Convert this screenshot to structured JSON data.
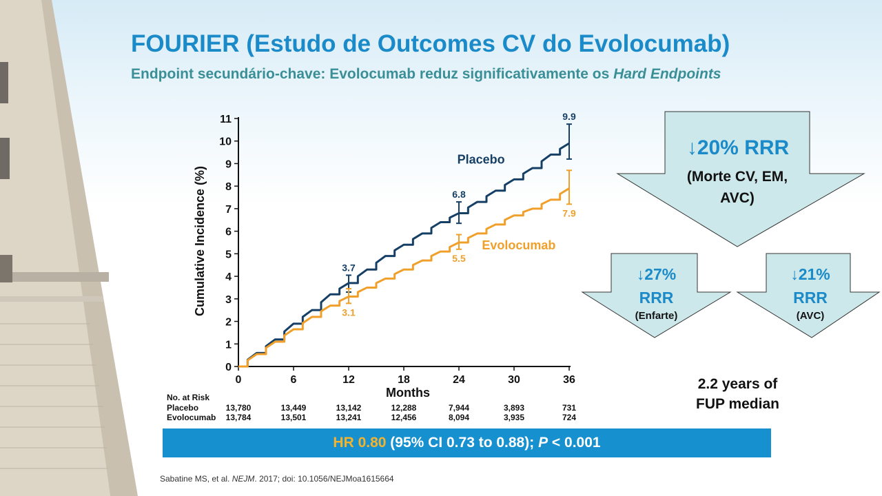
{
  "title": "FOURIER (Estudo de Outcomes CV do Evolocumab)",
  "subtitle": {
    "main": "Endpoint secundário-chave: Evolocumab reduz significativamente os ",
    "emph": "Hard Endpoints"
  },
  "chart_data": {
    "type": "line",
    "xlabel": "Months",
    "ylabel": "Cumulative Incidence (%)",
    "xlim": [
      0,
      36
    ],
    "ylim": [
      0,
      11
    ],
    "x_ticks": [
      0,
      6,
      12,
      18,
      24,
      30,
      36
    ],
    "y_ticks": [
      0,
      1,
      2,
      3,
      4,
      5,
      6,
      7,
      8,
      9,
      10,
      11
    ],
    "grid": false,
    "series": [
      {
        "name": "Placebo",
        "color": "#163f66",
        "x": [
          0,
          2,
          4,
          6,
          8,
          10,
          12,
          14,
          16,
          18,
          20,
          22,
          24,
          26,
          28,
          30,
          32,
          34,
          36
        ],
        "y": [
          0,
          0.6,
          1.2,
          1.9,
          2.5,
          3.2,
          3.7,
          4.3,
          4.9,
          5.4,
          5.9,
          6.4,
          6.8,
          7.3,
          7.8,
          8.3,
          8.8,
          9.4,
          9.9
        ],
        "labels": [
          {
            "x": 12,
            "y": 3.7,
            "text": "3.7",
            "err": [
              3.3,
              4.05
            ]
          },
          {
            "x": 24,
            "y": 6.8,
            "text": "6.8",
            "err": [
              6.35,
              7.3
            ]
          },
          {
            "x": 36,
            "y": 9.9,
            "text": "9.9",
            "err": [
              9.2,
              10.75
            ]
          }
        ]
      },
      {
        "name": "Evolocumab",
        "color": "#f0a02a",
        "x": [
          0,
          2,
          4,
          6,
          8,
          10,
          12,
          14,
          16,
          18,
          20,
          22,
          24,
          26,
          28,
          30,
          32,
          34,
          36
        ],
        "y": [
          0,
          0.55,
          1.1,
          1.65,
          2.2,
          2.7,
          3.1,
          3.5,
          3.9,
          4.3,
          4.7,
          5.1,
          5.5,
          5.9,
          6.3,
          6.7,
          7.0,
          7.4,
          7.9
        ],
        "labels": [
          {
            "x": 12,
            "y": 3.1,
            "text": "3.1",
            "err": [
              2.8,
              3.45
            ]
          },
          {
            "x": 24,
            "y": 5.5,
            "text": "5.5",
            "err": [
              5.2,
              5.85
            ]
          },
          {
            "x": 36,
            "y": 7.9,
            "text": "7.9",
            "err": [
              7.2,
              8.7
            ]
          }
        ]
      }
    ]
  },
  "risk_table": {
    "header": "No. at Risk",
    "rows": [
      {
        "name": "Placebo",
        "values": [
          "13,780",
          "13,449",
          "13,142",
          "12,288",
          "7,944",
          "3,893",
          "731"
        ]
      },
      {
        "name": "Evolocumab",
        "values": [
          "13,784",
          "13,501",
          "13,241",
          "12,456",
          "8,094",
          "3,935",
          "724"
        ]
      }
    ]
  },
  "arrows": {
    "main": {
      "value": "↓20% RRR",
      "line1": "(Morte CV, EM,",
      "line2": "AVC)"
    },
    "left": {
      "value": "↓27%",
      "rrr": "RRR",
      "note": "(Enfarte)"
    },
    "right": {
      "value": "↓21%",
      "rrr": "RRR",
      "note": "(AVC)"
    }
  },
  "fup": {
    "line1": "2.2 years of",
    "line2": "FUP median"
  },
  "hr_bar": {
    "hr": "HR 0.80",
    "ci": " (95% CI 0.73 to 0.88); ",
    "p_label": "P",
    "p_value": " < 0.001"
  },
  "citation": {
    "pre": "Sabatine MS, et al. ",
    "journal": "NEJM",
    "post": ". 2017; doi: 10.1056/NEJMoa1615664"
  },
  "colors": {
    "accent": "#1a8ac9",
    "subtitle": "#3a8f96",
    "arrow_fill": "#cde8ea",
    "bar": "#1790cf",
    "gold": "#f4b32e"
  }
}
